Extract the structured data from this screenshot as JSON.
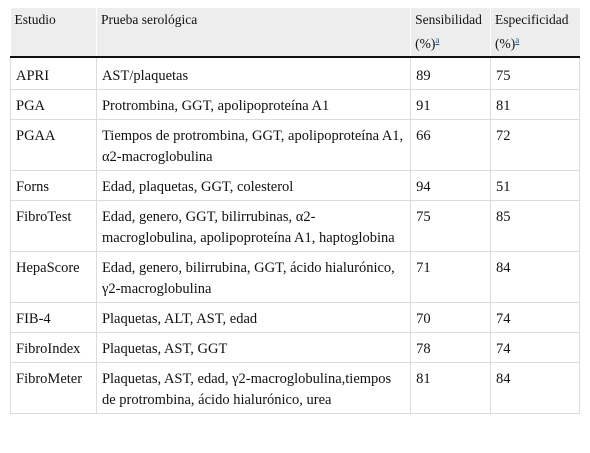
{
  "headers": {
    "study": "Estudio",
    "test": "Prueba serológica",
    "sensitivity_line1": "Sensibilidad",
    "sensitivity_line2": "(%)",
    "specificity_line1": "Especificidad",
    "specificity_line2": "(%)",
    "footnote_mark": "a"
  },
  "rows": [
    {
      "study": "APRI",
      "test": "AST/plaquetas",
      "sens": "89",
      "spec": "75"
    },
    {
      "study": "PGA",
      "test": "Protrombina, GGT, apolipoproteína A1",
      "sens": "91",
      "spec": "81"
    },
    {
      "study": "PGAA",
      "test": "Tiempos de protrombina, GGT, apolipoproteína A1, α2-macroglobulina",
      "sens": "66",
      "spec": "72"
    },
    {
      "study": "Forns",
      "test": "Edad, plaquetas, GGT, colesterol",
      "sens": "94",
      "spec": "51"
    },
    {
      "study": "FibroTest",
      "test": "Edad, genero, GGT, bilirrubinas, α2-macroglobulina, apolipoproteína A1, haptoglobina",
      "sens": "75",
      "spec": "85"
    },
    {
      "study": "HepaScore",
      "test": "Edad, genero, bilirrubina, GGT, ácido hialurónico, γ2-macroglobulina",
      "sens": "71",
      "spec": "84"
    },
    {
      "study": "FIB-4",
      "test": "Plaquetas, ALT, AST, edad",
      "sens": "70",
      "spec": "74"
    },
    {
      "study": "FibroIndex",
      "test": "Plaquetas, AST, GGT",
      "sens": "78",
      "spec": "74"
    },
    {
      "study": "FibroMeter",
      "test": "Plaquetas, AST, edad, γ2-macroglobulina,tiempos de protrombina, ácido hialurónico, urea",
      "sens": "81",
      "spec": "84"
    }
  ]
}
